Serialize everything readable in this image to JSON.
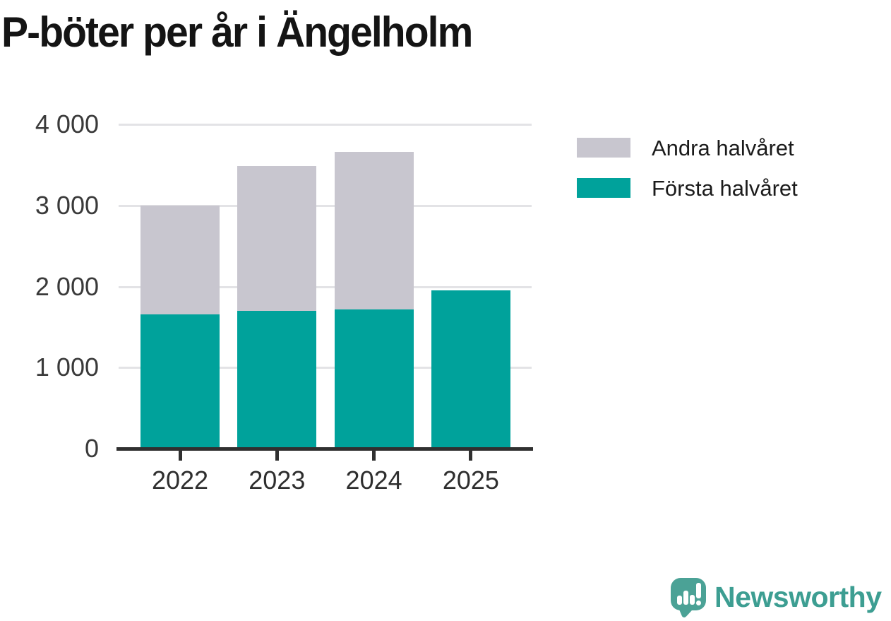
{
  "title": "P-böter per år i Ängelholm",
  "chart_data": {
    "type": "bar",
    "stacked": true,
    "title": "P-böter per år i Ängelholm",
    "categories": [
      "2022",
      "2023",
      "2024",
      "2025"
    ],
    "series": [
      {
        "name": "Första halvåret",
        "color": "#00A29B",
        "values": [
          1660,
          1700,
          1720,
          1950
        ]
      },
      {
        "name": "Andra halvåret",
        "color": "#C8C6CF",
        "values": [
          1340,
          1790,
          1940,
          0
        ]
      }
    ],
    "totals": [
      3000,
      3490,
      3660,
      1950
    ],
    "xlabel": "",
    "ylabel": "",
    "ylim": [
      0,
      4000
    ],
    "yticks": [
      0,
      1000,
      2000,
      3000,
      4000
    ],
    "ytick_labels": [
      "0",
      "1 000",
      "2 000",
      "3 000",
      "4 000"
    ],
    "grid": true,
    "legend_position": "right-top"
  },
  "legend": {
    "items": [
      {
        "label": "Andra halvåret",
        "color": "#C8C6CF"
      },
      {
        "label": "Första halvåret",
        "color": "#00A29B"
      }
    ]
  },
  "branding": {
    "wordmark": "Newsworthy",
    "icon": "newsworthy-speech-bubble-bar-chart-icon",
    "icon_color": "#4BA296",
    "wordmark_color": "#3D9E92"
  },
  "colors": {
    "first_half_teal": "#00A29B",
    "second_half_gray": "#C8C6CF",
    "gridline": "#E3E3E6",
    "axis": "#303030",
    "title_text": "#141414",
    "tick_text": "#3A3A3A",
    "background": "#FFFFFF"
  }
}
